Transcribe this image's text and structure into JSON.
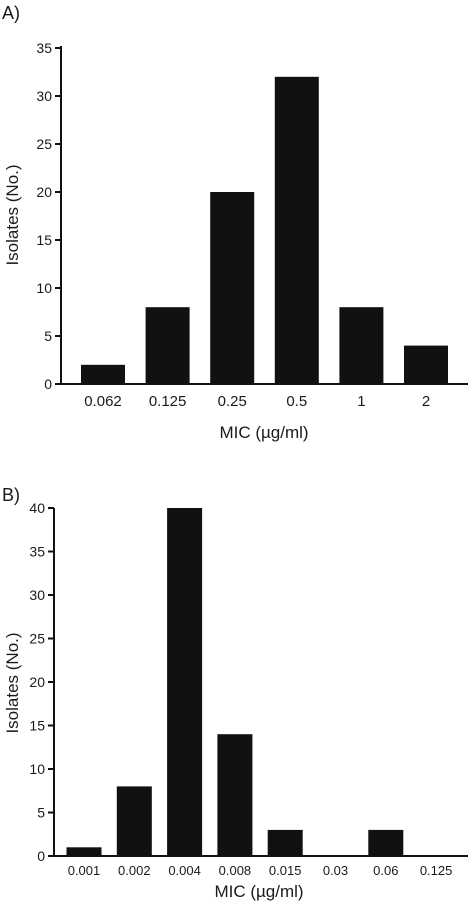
{
  "chart_data": [
    {
      "type": "bar",
      "panel_label": "A)",
      "categories": [
        "0.062",
        "0.125",
        "0.25",
        "0.5",
        "1",
        "2"
      ],
      "values": [
        2,
        8,
        20,
        32,
        8,
        4
      ],
      "xlabel": "MIC (µg/ml)",
      "ylabel": "Isolates (No.)",
      "ylim": [
        0,
        35
      ],
      "yticks": [
        "0",
        "5",
        "10",
        "15",
        "20",
        "25",
        "30",
        "35"
      ],
      "grid": false,
      "bar_color": "#111111"
    },
    {
      "type": "bar",
      "panel_label": "B)",
      "categories": [
        "0.001",
        "0.002",
        "0.004",
        "0.008",
        "0.015",
        "0.03",
        "0.06",
        "0.125"
      ],
      "values": [
        1,
        8,
        40,
        14,
        3,
        0,
        3,
        0
      ],
      "xlabel": "MIC (µg/ml)",
      "ylabel": "Isolates (No.)",
      "ylim": [
        0,
        40
      ],
      "yticks": [
        "0",
        "5",
        "10",
        "15",
        "20",
        "25",
        "30",
        "35",
        "40"
      ],
      "grid": false,
      "bar_color": "#111111"
    }
  ]
}
